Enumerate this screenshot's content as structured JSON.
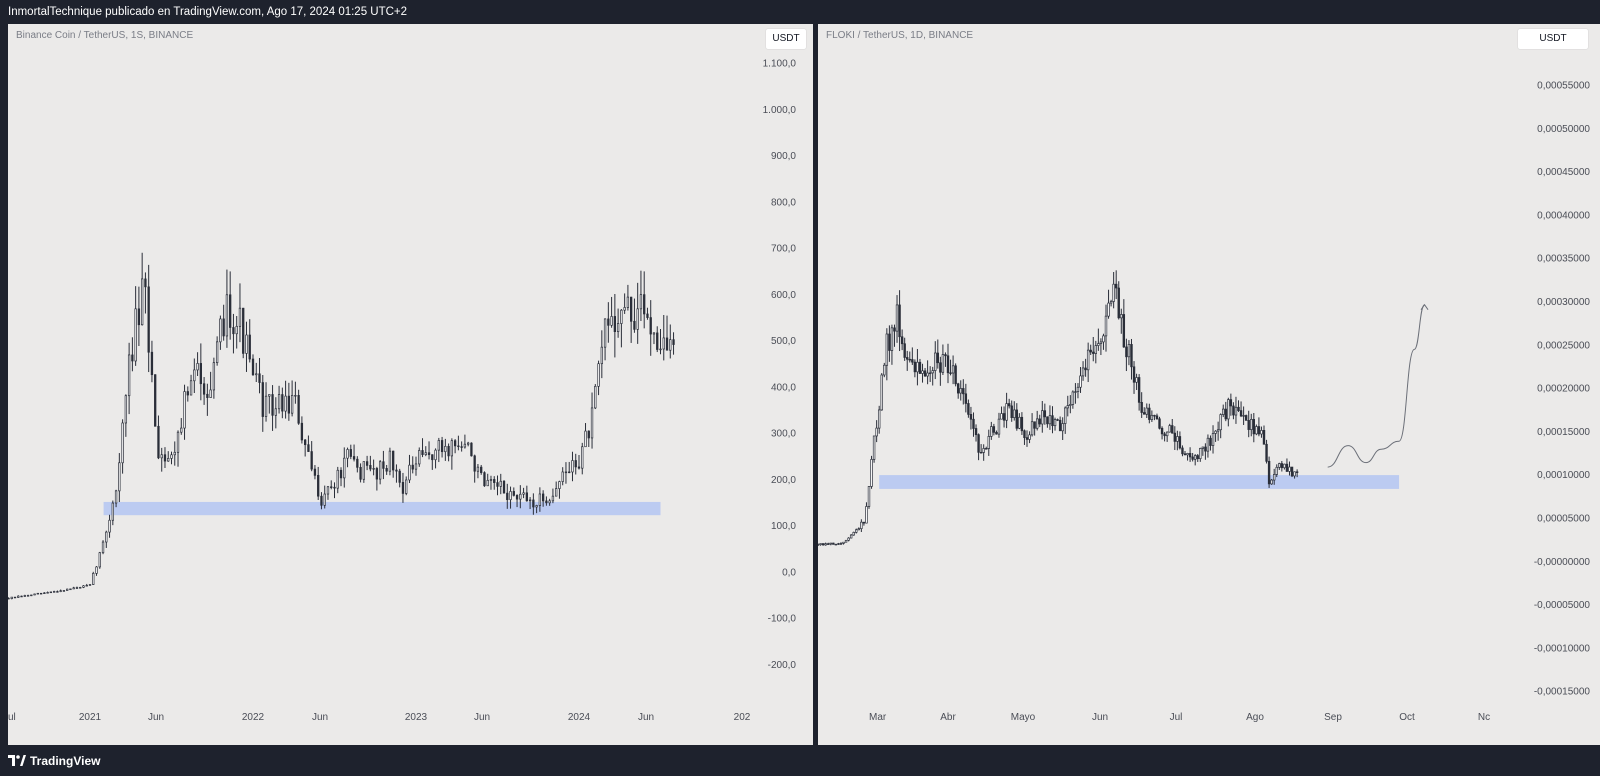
{
  "header": {
    "published_line": "InmortalTechnique publicado en TradingView.com, Ago 17, 2024 01:25 UTC+2"
  },
  "footer": {
    "brand": "TradingView",
    "brand_icon": "tradingview-logo-icon"
  },
  "colors": {
    "background": "#1e222d",
    "pane": "#ebeae9",
    "candles": "#2a2e39",
    "support_zone": "#bccbf1",
    "projection": "#6b6f78"
  },
  "chart_data": [
    {
      "type": "candlestick",
      "symbol_label": "Binance Coin / TetherUS, 1S, BINANCE",
      "currency_button": "USDT",
      "x_tick_labels": [
        "ul",
        "2021",
        "Jun",
        "2022",
        "Jun",
        "2023",
        "Jun",
        "2024",
        "Jun",
        "202"
      ],
      "y_tick_labels": [
        "1.100,0",
        "1.000,0",
        "900,0",
        "800,0",
        "700,0",
        "600,0",
        "500,0",
        "400,0",
        "300,0",
        "200,0",
        "100,0",
        "0,0",
        "-100,0",
        "-200,0"
      ],
      "ylim": [
        -240,
        1140
      ],
      "support_zone": {
        "from": "2021-02",
        "to": "2024-07",
        "low": 185,
        "high": 212
      },
      "price_path": [
        [
          "2020-07",
          16
        ],
        [
          "2020-10",
          28
        ],
        [
          "2021-01",
          42
        ],
        [
          "2021-02",
          130
        ],
        [
          "2021-03",
          250
        ],
        [
          "2021-04",
          520
        ],
        [
          "2021-05",
          640
        ],
        [
          "2021-06",
          320
        ],
        [
          "2021-07",
          300
        ],
        [
          "2021-08",
          420
        ],
        [
          "2021-09",
          480
        ],
        [
          "2021-10",
          440
        ],
        [
          "2021-11",
          620
        ],
        [
          "2021-12",
          580
        ],
        [
          "2022-01",
          460
        ],
        [
          "2022-02",
          400
        ],
        [
          "2022-03",
          410
        ],
        [
          "2022-04",
          420
        ],
        [
          "2022-05",
          300
        ],
        [
          "2022-06",
          220
        ],
        [
          "2022-07",
          250
        ],
        [
          "2022-08",
          300
        ],
        [
          "2022-09",
          275
        ],
        [
          "2022-10",
          275
        ],
        [
          "2022-11",
          300
        ],
        [
          "2022-12",
          245
        ],
        [
          "2023-01",
          290
        ],
        [
          "2023-02",
          310
        ],
        [
          "2023-03",
          320
        ],
        [
          "2023-04",
          330
        ],
        [
          "2023-05",
          315
        ],
        [
          "2023-06",
          240
        ],
        [
          "2023-07",
          240
        ],
        [
          "2023-08",
          225
        ],
        [
          "2023-09",
          215
        ],
        [
          "2023-10",
          210
        ],
        [
          "2023-11",
          230
        ],
        [
          "2023-12",
          270
        ],
        [
          "2024-01",
          300
        ],
        [
          "2024-02",
          380
        ],
        [
          "2024-03",
          580
        ],
        [
          "2024-04",
          600
        ],
        [
          "2024-05",
          590
        ],
        [
          "2024-06",
          600
        ],
        [
          "2024-07",
          540
        ],
        [
          "2024-08",
          520
        ]
      ]
    },
    {
      "type": "candlestick",
      "symbol_label": "FLOKI / TetherUS, 1D, BINANCE",
      "currency_button": "USDT",
      "x_tick_labels": [
        "Mar",
        "Abr",
        "Mayo",
        "Jun",
        "Jul",
        "Ago",
        "Sep",
        "Oct",
        "Nc"
      ],
      "y_tick_labels": [
        "0,00055000",
        "0,00050000",
        "0,00045000",
        "0,00040000",
        "0,00035000",
        "0,00030000",
        "0,00025000",
        "0,00020000",
        "0,00015000",
        "0,00010000",
        "0,00005000",
        "-0,00000000",
        "-0,00005000",
        "-0,00010000",
        "-0,00015000"
      ],
      "ylim": [
        -0.000165,
        0.000595
      ],
      "support_zone": {
        "from": "2024-03-05",
        "to": "2024-09-25",
        "low": 9.85e-05,
        "high": 0.000114
      },
      "price_path": [
        [
          "2024-02-01",
          3.4e-05
        ],
        [
          "2024-02-20",
          3.8e-05
        ],
        [
          "2024-02-28",
          6e-05
        ],
        [
          "2024-03-03",
          0.00015
        ],
        [
          "2024-03-08",
          0.00026
        ],
        [
          "2024-03-12",
          0.00029
        ],
        [
          "2024-03-18",
          0.00023
        ],
        [
          "2024-03-25",
          0.00024
        ],
        [
          "2024-04-01",
          0.00024
        ],
        [
          "2024-04-08",
          0.0002
        ],
        [
          "2024-04-13",
          0.00014
        ],
        [
          "2024-04-18",
          0.00016
        ],
        [
          "2024-04-25",
          0.00019
        ],
        [
          "2024-05-01",
          0.00016
        ],
        [
          "2024-05-08",
          0.00018
        ],
        [
          "2024-05-15",
          0.00017
        ],
        [
          "2024-05-22",
          0.00022
        ],
        [
          "2024-05-28",
          0.00026
        ],
        [
          "2024-06-02",
          0.00028
        ],
        [
          "2024-06-05",
          0.00032
        ],
        [
          "2024-06-10",
          0.00026
        ],
        [
          "2024-06-16",
          0.00019
        ],
        [
          "2024-06-22",
          0.00017
        ],
        [
          "2024-06-28",
          0.00016
        ],
        [
          "2024-07-05",
          0.00013
        ],
        [
          "2024-07-12",
          0.00015
        ],
        [
          "2024-07-20",
          0.00019
        ],
        [
          "2024-07-26",
          0.00018
        ],
        [
          "2024-08-02",
          0.00016
        ],
        [
          "2024-08-05",
          0.000105
        ],
        [
          "2024-08-10",
          0.000125
        ],
        [
          "2024-08-16",
          0.000115
        ]
      ],
      "projection_path": [
        [
          "2024-08-28",
          0.000123
        ],
        [
          "2024-09-05",
          0.000147
        ],
        [
          "2024-09-12",
          0.000128
        ],
        [
          "2024-09-18",
          0.000143
        ],
        [
          "2024-09-25",
          0.000152
        ],
        [
          "2024-10-01",
          0.000255
        ],
        [
          "2024-10-05",
          0.000305
        ]
      ]
    }
  ]
}
